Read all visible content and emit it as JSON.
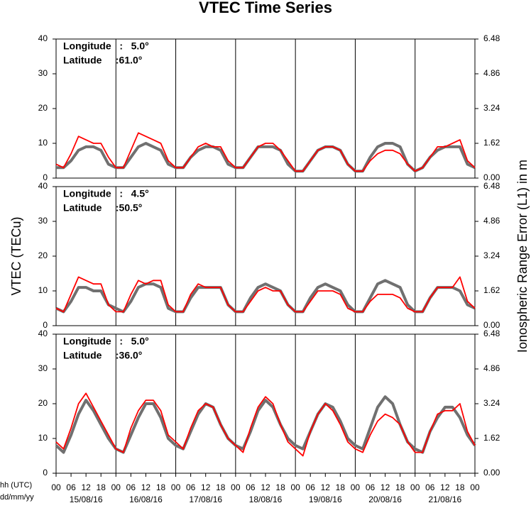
{
  "title": "VTEC Time Series",
  "y_label": "VTEC (TECu)",
  "y2_label": "Ionospheric Range Error (L1) in m",
  "x_labels": [
    "hh (UTC)",
    "dd/mm/yy"
  ],
  "chart_data": [
    {
      "type": "line",
      "annotations": [
        "Longitude   :   5.0°",
        "Latitude     :61.0°"
      ],
      "x": [
        0,
        3,
        6,
        9,
        12,
        15,
        18,
        21,
        24,
        27,
        30,
        33,
        36,
        39,
        42,
        45,
        48,
        51,
        54,
        57,
        60,
        63,
        66,
        69,
        72,
        75,
        78,
        81,
        84,
        87,
        90,
        93,
        96,
        99,
        102,
        105,
        108,
        111,
        114,
        117,
        120,
        123,
        126,
        129,
        132,
        135,
        138,
        141,
        144,
        147,
        150,
        153,
        156,
        159,
        162,
        165,
        168
      ],
      "xlim": [
        0,
        168
      ],
      "ylim": [
        0,
        40
      ],
      "yticks": [
        0,
        10,
        20,
        30,
        40
      ],
      "y2lim": [
        0,
        6.48
      ],
      "y2ticks": [
        {
          "value": 0,
          "label": "0.00"
        },
        1.62,
        3.24,
        4.86,
        6.48
      ],
      "series": [
        {
          "color": "#707070",
          "values": [
            3,
            3,
            5,
            8,
            9,
            9,
            8,
            4,
            3,
            3,
            6,
            9,
            10,
            9,
            8,
            4,
            3,
            3,
            6,
            8,
            9,
            9,
            8,
            4,
            3,
            3,
            6,
            9,
            9,
            9,
            8,
            4,
            2,
            2,
            5,
            8,
            9,
            9,
            8,
            4,
            2,
            2,
            6,
            9,
            10,
            10,
            9,
            4,
            2,
            3,
            6,
            8,
            9,
            9,
            9,
            4,
            3
          ]
        },
        {
          "color": "#ff0000",
          "values": [
            4,
            3,
            7,
            12,
            11,
            10,
            10,
            6,
            3,
            3,
            8,
            13,
            12,
            11,
            10,
            5,
            3,
            3,
            6,
            9,
            10,
            9,
            9,
            5,
            3,
            3,
            6,
            9,
            10,
            10,
            8,
            5,
            2,
            2,
            5,
            8,
            9,
            9,
            8,
            4,
            2,
            2,
            5,
            7,
            8,
            8,
            7,
            4,
            2,
            3,
            6,
            9,
            9,
            10,
            11,
            5,
            3
          ]
        }
      ]
    },
    {
      "type": "line",
      "annotations": [
        "Longitude   :   4.5°",
        "Latitude     :50.5°"
      ],
      "x": [
        0,
        3,
        6,
        9,
        12,
        15,
        18,
        21,
        24,
        27,
        30,
        33,
        36,
        39,
        42,
        45,
        48,
        51,
        54,
        57,
        60,
        63,
        66,
        69,
        72,
        75,
        78,
        81,
        84,
        87,
        90,
        93,
        96,
        99,
        102,
        105,
        108,
        111,
        114,
        117,
        120,
        123,
        126,
        129,
        132,
        135,
        138,
        141,
        144,
        147,
        150,
        153,
        156,
        159,
        162,
        165,
        168
      ],
      "xlim": [
        0,
        168
      ],
      "ylim": [
        0,
        40
      ],
      "yticks": [
        0,
        10,
        20,
        30,
        40
      ],
      "y2lim": [
        0,
        6.48
      ],
      "y2ticks": [
        {
          "value": 0,
          "label": "0.00"
        },
        1.62,
        3.24,
        4.86,
        6.48
      ],
      "series": [
        {
          "color": "#707070",
          "values": [
            5,
            4,
            7,
            11,
            11,
            10,
            10,
            6,
            5,
            4,
            7,
            11,
            12,
            12,
            11,
            5,
            4,
            4,
            8,
            11,
            11,
            11,
            11,
            6,
            4,
            4,
            8,
            11,
            12,
            11,
            10,
            6,
            4,
            4,
            8,
            11,
            12,
            11,
            10,
            6,
            4,
            4,
            8,
            12,
            13,
            12,
            11,
            6,
            4,
            4,
            8,
            11,
            11,
            11,
            10,
            6,
            5
          ]
        },
        {
          "color": "#ff0000",
          "values": [
            5,
            4,
            9,
            14,
            13,
            12,
            12,
            6,
            4,
            4,
            9,
            13,
            12,
            13,
            13,
            6,
            4,
            4,
            9,
            12,
            11,
            11,
            11,
            6,
            4,
            4,
            7,
            10,
            11,
            10,
            10,
            6,
            4,
            4,
            7,
            10,
            10,
            10,
            9,
            5,
            4,
            4,
            7,
            9,
            9,
            9,
            8,
            5,
            4,
            4,
            8,
            11,
            11,
            11,
            14,
            7,
            5
          ]
        }
      ]
    },
    {
      "type": "line",
      "annotations": [
        "Longitude   :   5.0°",
        "Latitude     :36.0°"
      ],
      "x": [
        0,
        3,
        6,
        9,
        12,
        15,
        18,
        21,
        24,
        27,
        30,
        33,
        36,
        39,
        42,
        45,
        48,
        51,
        54,
        57,
        60,
        63,
        66,
        69,
        72,
        75,
        78,
        81,
        84,
        87,
        90,
        93,
        96,
        99,
        102,
        105,
        108,
        111,
        114,
        117,
        120,
        123,
        126,
        129,
        132,
        135,
        138,
        141,
        144,
        147,
        150,
        153,
        156,
        159,
        162,
        165,
        168
      ],
      "xlim": [
        0,
        168
      ],
      "ylim": [
        0,
        40
      ],
      "yticks": [
        0,
        10,
        20,
        30,
        40
      ],
      "y2lim": [
        0,
        6.48
      ],
      "y2ticks": [
        {
          "value": 0,
          "label": "0.00"
        },
        1.62,
        3.24,
        4.86,
        6.48
      ],
      "xticks": [
        {
          "value": 0,
          "label": "00"
        },
        {
          "value": 6,
          "label": "06"
        },
        {
          "value": 12,
          "label": "12"
        },
        {
          "value": 18,
          "label": "18"
        },
        {
          "value": 24,
          "label": "00"
        },
        {
          "value": 30,
          "label": "06"
        },
        {
          "value": 36,
          "label": "12"
        },
        {
          "value": 42,
          "label": "18"
        },
        {
          "value": 48,
          "label": "00"
        },
        {
          "value": 54,
          "label": "06"
        },
        {
          "value": 60,
          "label": "12"
        },
        {
          "value": 66,
          "label": "18"
        },
        {
          "value": 72,
          "label": "00"
        },
        {
          "value": 78,
          "label": "06"
        },
        {
          "value": 84,
          "label": "12"
        },
        {
          "value": 90,
          "label": "18"
        },
        {
          "value": 96,
          "label": "00"
        },
        {
          "value": 102,
          "label": "06"
        },
        {
          "value": 108,
          "label": "12"
        },
        {
          "value": 114,
          "label": "18"
        },
        {
          "value": 120,
          "label": "00"
        },
        {
          "value": 126,
          "label": "06"
        },
        {
          "value": 132,
          "label": "12"
        },
        {
          "value": 138,
          "label": "18"
        },
        {
          "value": 144,
          "label": "00"
        },
        {
          "value": 150,
          "label": "06"
        },
        {
          "value": 156,
          "label": "12"
        },
        {
          "value": 162,
          "label": "18"
        },
        {
          "value": 168,
          "label": "00"
        }
      ],
      "dates": [
        "15/08/16",
        "16/08/16",
        "17/08/16",
        "18/08/16",
        "19/08/16",
        "20/08/16",
        "21/08/16"
      ],
      "series": [
        {
          "color": "#707070",
          "values": [
            8,
            6,
            11,
            17,
            21,
            18,
            14,
            10,
            7,
            6,
            11,
            16,
            20,
            20,
            16,
            10,
            8,
            7,
            12,
            17,
            20,
            19,
            14,
            10,
            8,
            7,
            12,
            18,
            21,
            19,
            14,
            10,
            8,
            7,
            12,
            17,
            20,
            19,
            15,
            10,
            8,
            7,
            13,
            19,
            22,
            20,
            14,
            9,
            7,
            6,
            12,
            16,
            19,
            19,
            16,
            11,
            8
          ]
        },
        {
          "color": "#ff0000",
          "values": [
            9,
            7,
            13,
            20,
            23,
            19,
            15,
            11,
            7,
            6,
            13,
            18,
            21,
            21,
            18,
            11,
            9,
            7,
            13,
            18,
            20,
            19,
            14,
            10,
            8,
            6,
            13,
            19,
            22,
            20,
            14,
            9,
            7,
            5,
            12,
            17,
            20,
            18,
            14,
            9,
            7,
            6,
            11,
            15,
            17,
            16,
            14,
            9,
            6,
            6,
            12,
            17,
            18,
            18,
            20,
            12,
            8
          ]
        }
      ]
    }
  ]
}
